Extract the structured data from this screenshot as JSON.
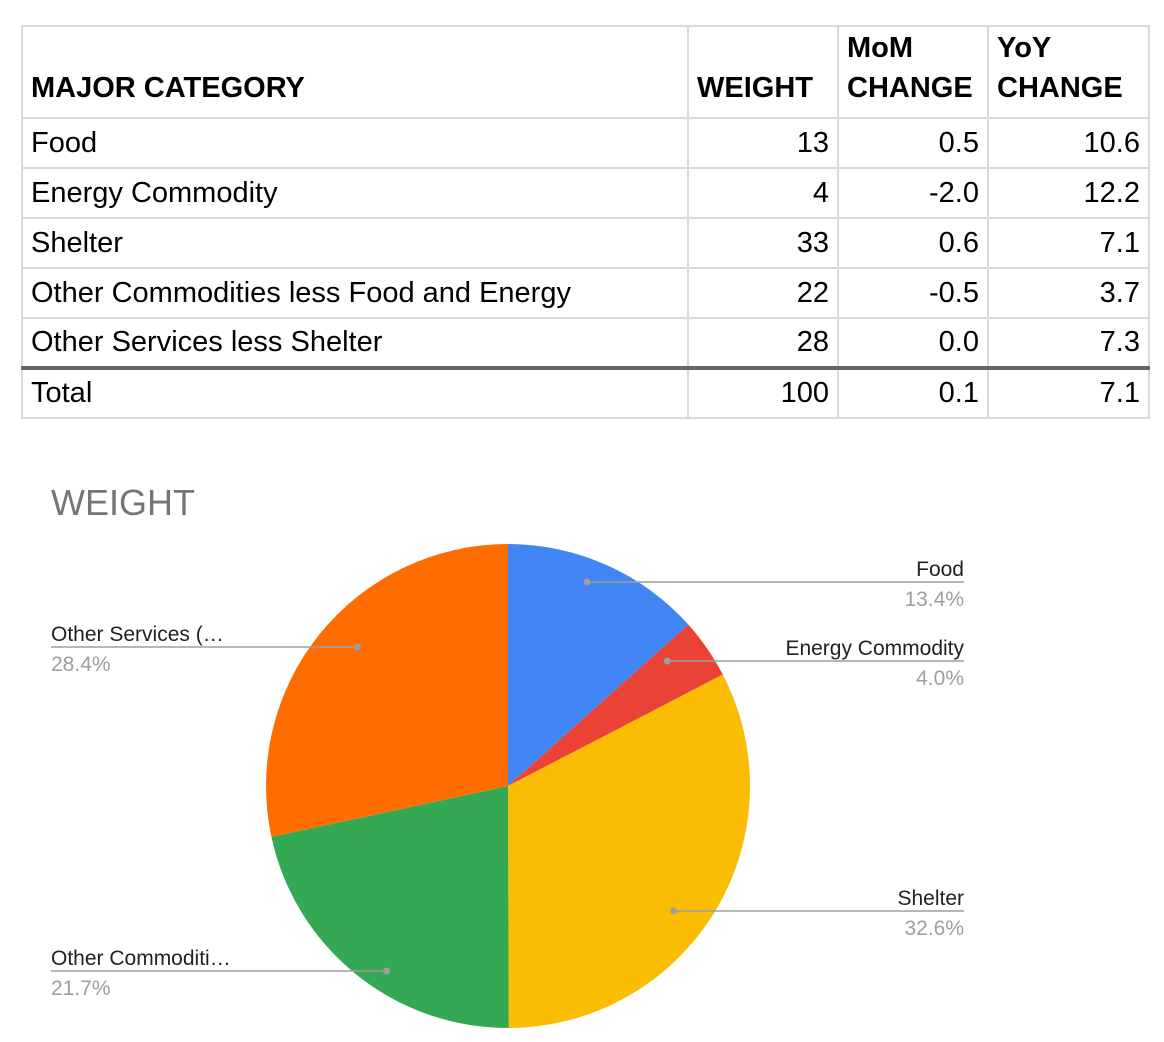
{
  "table": {
    "headers": {
      "category": "MAJOR CATEGORY",
      "weight": "WEIGHT",
      "mom_1": "MoM",
      "mom_2": "CHANGE",
      "yoy_1": "YoY",
      "yoy_2": "CHANGE"
    },
    "rows": [
      {
        "category": "Food",
        "weight": "13",
        "mom": "0.5",
        "yoy": "10.6"
      },
      {
        "category": "Energy Commodity",
        "weight": "4",
        "mom": "-2.0",
        "yoy": "12.2"
      },
      {
        "category": "Shelter",
        "weight": "33",
        "mom": "0.6",
        "yoy": "7.1"
      },
      {
        "category": "Other Commodities less Food and Energy",
        "weight": "22",
        "mom": "-0.5",
        "yoy": "3.7"
      },
      {
        "category": "Other Services less Shelter",
        "weight": "28",
        "mom": "0.0",
        "yoy": "7.3"
      }
    ],
    "total": {
      "category": "Total",
      "weight": "100",
      "mom": "0.1",
      "yoy": "7.1"
    }
  },
  "chart_data": {
    "type": "pie",
    "title": "WEIGHT",
    "slices": [
      {
        "label": "Food",
        "display_label": "Food",
        "value": 13.4,
        "pct_label": "13.4%",
        "color": "#4285f4"
      },
      {
        "label": "Energy Commodity",
        "display_label": "Energy Commodity",
        "value": 4.0,
        "pct_label": "4.0%",
        "color": "#ea4335"
      },
      {
        "label": "Shelter",
        "display_label": "Shelter",
        "value": 32.6,
        "pct_label": "32.6%",
        "color": "#fbbc04"
      },
      {
        "label": "Other Commodities less Food and Energy",
        "display_label": "Other Commoditi…",
        "value": 21.7,
        "pct_label": "21.7%",
        "color": "#34a853"
      },
      {
        "label": "Other Services less Shelter",
        "display_label": "Other Services (…",
        "value": 28.4,
        "pct_label": "28.4%",
        "color": "#ff6d01"
      }
    ],
    "start_angle": "12 o'clock",
    "direction": "clockwise",
    "legend": "callout labels"
  }
}
